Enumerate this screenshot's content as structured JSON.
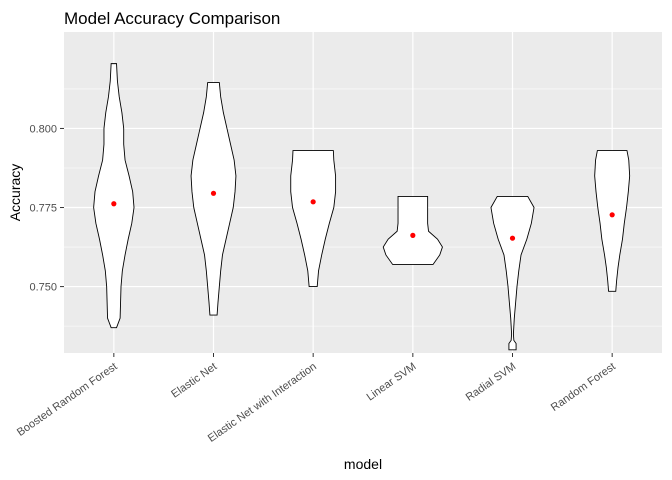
{
  "chart_data": {
    "type": "violin",
    "title": "Model Accuracy Comparison",
    "xlabel": "model",
    "ylabel": "Accuracy",
    "ylim": [
      0.729,
      0.8305
    ],
    "yticks": [
      0.75,
      0.775,
      0.8
    ],
    "ytick_labels": [
      "0.750",
      "0.775",
      "0.800"
    ],
    "grid": true,
    "legend": "none",
    "colors": {
      "panel": "#ebebeb",
      "grid": "#ffffff",
      "violin_fill": "#ffffff",
      "violin_stroke": "#000000",
      "mean_point": "#ff0000"
    },
    "categories": [
      "Boosted Random Forest",
      "Elastic Net",
      "Elastic Net with Interaction",
      "Linear SVM",
      "Radial SVM",
      "Random Forest"
    ],
    "means": [
      0.7762,
      0.7795,
      0.7768,
      0.7662,
      0.7653,
      0.7727
    ],
    "violins": [
      {
        "name": "Boosted Random Forest",
        "profile": [
          [
            0.737,
            0.06
          ],
          [
            0.74,
            0.14
          ],
          [
            0.745,
            0.15
          ],
          [
            0.75,
            0.16
          ],
          [
            0.755,
            0.19
          ],
          [
            0.76,
            0.25
          ],
          [
            0.765,
            0.32
          ],
          [
            0.77,
            0.4
          ],
          [
            0.775,
            0.45
          ],
          [
            0.78,
            0.42
          ],
          [
            0.785,
            0.34
          ],
          [
            0.79,
            0.25
          ],
          [
            0.795,
            0.22
          ],
          [
            0.8,
            0.22
          ],
          [
            0.805,
            0.18
          ],
          [
            0.81,
            0.12
          ],
          [
            0.815,
            0.08
          ],
          [
            0.8205,
            0.06
          ]
        ]
      },
      {
        "name": "Elastic Net",
        "profile": [
          [
            0.741,
            0.08
          ],
          [
            0.745,
            0.1
          ],
          [
            0.75,
            0.13
          ],
          [
            0.755,
            0.16
          ],
          [
            0.76,
            0.2
          ],
          [
            0.765,
            0.28
          ],
          [
            0.77,
            0.36
          ],
          [
            0.775,
            0.44
          ],
          [
            0.78,
            0.48
          ],
          [
            0.785,
            0.5
          ],
          [
            0.79,
            0.46
          ],
          [
            0.795,
            0.38
          ],
          [
            0.8,
            0.3
          ],
          [
            0.805,
            0.22
          ],
          [
            0.81,
            0.16
          ],
          [
            0.8145,
            0.13
          ]
        ]
      },
      {
        "name": "Elastic Net with Interaction",
        "profile": [
          [
            0.75,
            0.09
          ],
          [
            0.755,
            0.12
          ],
          [
            0.76,
            0.19
          ],
          [
            0.765,
            0.27
          ],
          [
            0.77,
            0.36
          ],
          [
            0.775,
            0.46
          ],
          [
            0.78,
            0.5
          ],
          [
            0.785,
            0.5
          ],
          [
            0.79,
            0.46
          ],
          [
            0.793,
            0.45
          ]
        ]
      },
      {
        "name": "Linear SVM",
        "profile": [
          [
            0.757,
            0.45
          ],
          [
            0.76,
            0.6
          ],
          [
            0.7625,
            0.66
          ],
          [
            0.765,
            0.55
          ],
          [
            0.7675,
            0.35
          ],
          [
            0.77,
            0.33
          ],
          [
            0.775,
            0.33
          ],
          [
            0.7785,
            0.33
          ]
        ]
      },
      {
        "name": "Radial SVM",
        "profile": [
          [
            0.73,
            0.08
          ],
          [
            0.732,
            0.08
          ],
          [
            0.733,
            0.03
          ],
          [
            0.735,
            0.02
          ],
          [
            0.74,
            0.04
          ],
          [
            0.745,
            0.07
          ],
          [
            0.75,
            0.1
          ],
          [
            0.755,
            0.14
          ],
          [
            0.76,
            0.19
          ],
          [
            0.765,
            0.32
          ],
          [
            0.77,
            0.42
          ],
          [
            0.775,
            0.48
          ],
          [
            0.7785,
            0.34
          ]
        ]
      },
      {
        "name": "Random Forest",
        "profile": [
          [
            0.7485,
            0.08
          ],
          [
            0.752,
            0.1
          ],
          [
            0.756,
            0.13
          ],
          [
            0.76,
            0.17
          ],
          [
            0.765,
            0.23
          ],
          [
            0.77,
            0.27
          ],
          [
            0.775,
            0.32
          ],
          [
            0.78,
            0.36
          ],
          [
            0.785,
            0.39
          ],
          [
            0.79,
            0.37
          ],
          [
            0.793,
            0.33
          ]
        ]
      }
    ]
  }
}
